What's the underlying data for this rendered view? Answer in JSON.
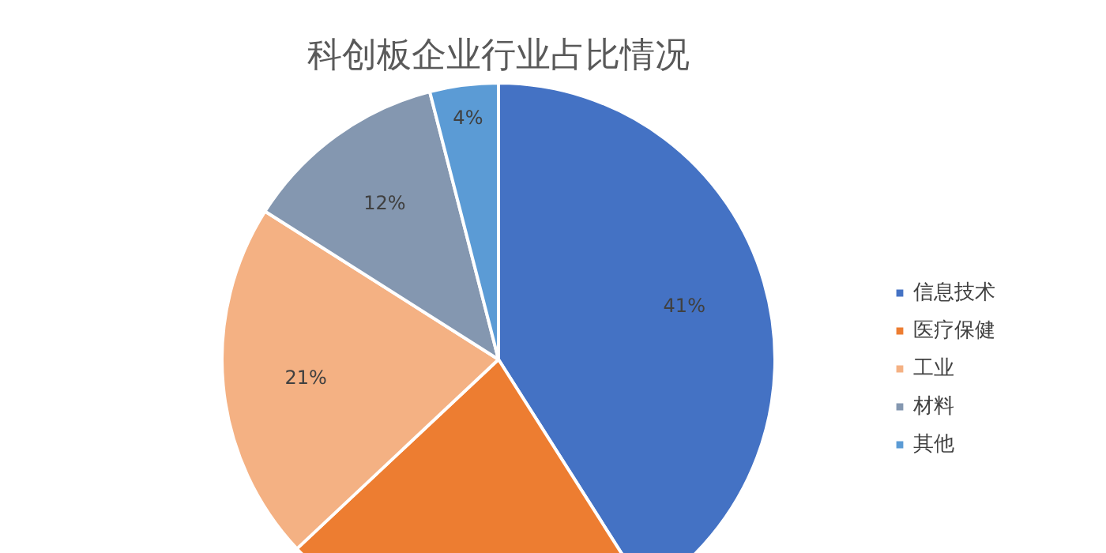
{
  "chart_data": {
    "type": "pie",
    "title": "科创板企业行业占比情况",
    "categories": [
      "信息技术",
      "医疗保健",
      "工业",
      "材料",
      "其他"
    ],
    "values": [
      41,
      22,
      21,
      12,
      4
    ],
    "colors": [
      "#4472c4",
      "#ed7d31",
      "#f4b183",
      "#8497b0",
      "#5b9bd5"
    ],
    "value_labels": [
      "41%",
      null,
      "21%",
      "12%",
      "4%"
    ],
    "legend": "right"
  }
}
